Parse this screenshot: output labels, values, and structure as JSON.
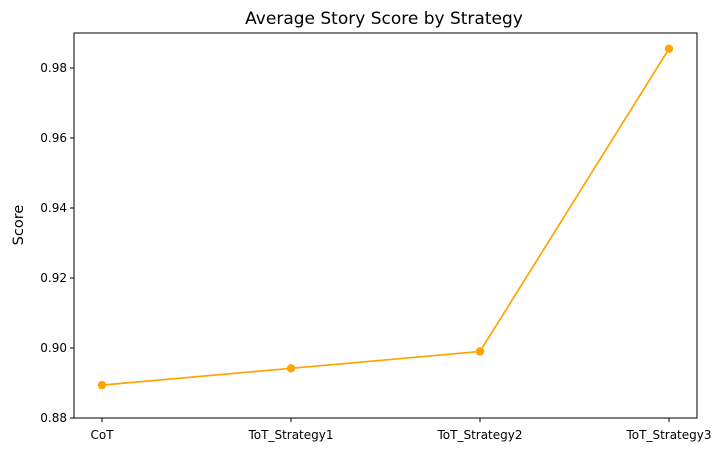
{
  "chart_data": {
    "type": "line",
    "title": "Average Story Score by Strategy",
    "xlabel": "",
    "ylabel": "Score",
    "categories": [
      "CoT",
      "ToT_Strategy1",
      "ToT_Strategy2",
      "ToT_Strategy3"
    ],
    "series": [
      {
        "values": [
          0.8894,
          0.8942,
          0.899,
          0.9855
        ],
        "color": "#ffa500",
        "marker": "circle"
      }
    ],
    "ylim": [
      0.88,
      0.99
    ],
    "yticks": [
      0.88,
      0.9,
      0.92,
      0.94,
      0.96,
      0.98
    ],
    "ytick_labels": [
      "0.88",
      "0.90",
      "0.92",
      "0.94",
      "0.96",
      "0.98"
    ],
    "grid": false,
    "legend": "none"
  }
}
